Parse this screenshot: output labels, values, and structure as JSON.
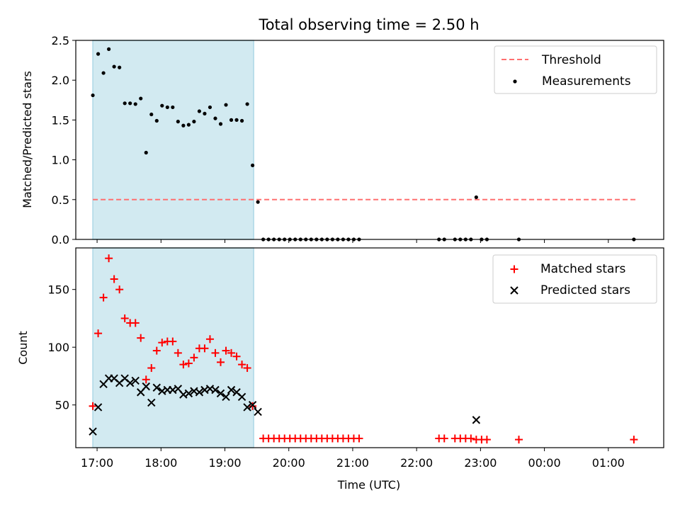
{
  "colors": {
    "shade": "#add8e6",
    "threshold": "#ff7070",
    "measurement": "#000000",
    "matched": "#ff0000",
    "predicted": "#000000"
  },
  "chart_data": [
    {
      "type": "scatter",
      "title": "Total observing time = 2.50 h",
      "ylabel": "Matched/Predicted stars",
      "xlabel": "",
      "ylim": [
        0,
        2.5
      ],
      "yticks": [
        0.0,
        0.5,
        1.0,
        1.5,
        2.0,
        2.5
      ],
      "ytick_labels": [
        "0.0",
        "0.5",
        "1.0",
        "1.5",
        "2.0",
        "2.5"
      ],
      "shaded_interval": [
        "16:56",
        "19:27"
      ],
      "threshold": {
        "name": "Threshold",
        "value": 0.5,
        "x_from": "16:56",
        "x_to": "01:28"
      },
      "legend_position": "top-right",
      "legend": [
        "Threshold",
        "Measurements"
      ],
      "series": [
        {
          "name": "Measurements",
          "marker": "dot",
          "points": [
            [
              "16:56",
              1.81
            ],
            [
              "17:01",
              2.33
            ],
            [
              "17:06",
              2.09
            ],
            [
              "17:11",
              2.39
            ],
            [
              "17:16",
              2.17
            ],
            [
              "17:21",
              2.16
            ],
            [
              "17:26",
              1.71
            ],
            [
              "17:31",
              1.71
            ],
            [
              "17:36",
              1.7
            ],
            [
              "17:41",
              1.77
            ],
            [
              "17:46",
              1.09
            ],
            [
              "17:51",
              1.57
            ],
            [
              "17:56",
              1.49
            ],
            [
              "18:01",
              1.68
            ],
            [
              "18:06",
              1.66
            ],
            [
              "18:11",
              1.66
            ],
            [
              "18:16",
              1.48
            ],
            [
              "18:21",
              1.43
            ],
            [
              "18:26",
              1.44
            ],
            [
              "18:31",
              1.48
            ],
            [
              "18:36",
              1.61
            ],
            [
              "18:41",
              1.58
            ],
            [
              "18:46",
              1.66
            ],
            [
              "18:51",
              1.52
            ],
            [
              "18:56",
              1.45
            ],
            [
              "19:01",
              1.69
            ],
            [
              "19:06",
              1.5
            ],
            [
              "19:11",
              1.5
            ],
            [
              "19:16",
              1.49
            ],
            [
              "19:21",
              1.7
            ],
            [
              "19:26",
              0.93
            ],
            [
              "19:31",
              0.47
            ],
            [
              "19:36",
              0
            ],
            [
              "19:41",
              0
            ],
            [
              "19:46",
              0
            ],
            [
              "19:51",
              0
            ],
            [
              "19:56",
              0
            ],
            [
              "20:01",
              0
            ],
            [
              "20:06",
              0
            ],
            [
              "20:11",
              0
            ],
            [
              "20:16",
              0
            ],
            [
              "20:21",
              0
            ],
            [
              "20:26",
              0
            ],
            [
              "20:31",
              0
            ],
            [
              "20:36",
              0
            ],
            [
              "20:41",
              0
            ],
            [
              "20:46",
              0
            ],
            [
              "20:51",
              0
            ],
            [
              "20:56",
              0
            ],
            [
              "21:01",
              0
            ],
            [
              "21:06",
              0
            ],
            [
              "22:21",
              0
            ],
            [
              "22:26",
              0
            ],
            [
              "22:36",
              0
            ],
            [
              "22:41",
              0
            ],
            [
              "22:46",
              0
            ],
            [
              "22:51",
              0
            ],
            [
              "22:56",
              0.53
            ],
            [
              "23:01",
              0
            ],
            [
              "23:06",
              0
            ],
            [
              "23:36",
              0
            ],
            [
              "01:24",
              0
            ]
          ]
        }
      ]
    },
    {
      "type": "scatter",
      "title": "",
      "ylabel": "Count",
      "xlabel": "Time (UTC)",
      "ylim": [
        13,
        186
      ],
      "yticks": [
        50,
        100,
        150
      ],
      "ytick_labels": [
        "50",
        "100",
        "150"
      ],
      "xlim": [
        "16:40",
        "01:52"
      ],
      "xticks": [
        "17:00",
        "18:00",
        "19:00",
        "20:00",
        "21:00",
        "22:00",
        "23:00",
        "00:00",
        "01:00"
      ],
      "shaded_interval": [
        "16:56",
        "19:27"
      ],
      "legend_position": "top-right",
      "legend": [
        "Matched stars",
        "Predicted stars"
      ],
      "series": [
        {
          "name": "Matched stars",
          "marker": "plus",
          "points": [
            [
              "16:56",
              49
            ],
            [
              "17:01",
              112
            ],
            [
              "17:06",
              143
            ],
            [
              "17:11",
              177
            ],
            [
              "17:16",
              159
            ],
            [
              "17:21",
              150
            ],
            [
              "17:26",
              125
            ],
            [
              "17:31",
              121
            ],
            [
              "17:36",
              121
            ],
            [
              "17:41",
              108
            ],
            [
              "17:46",
              72
            ],
            [
              "17:51",
              82
            ],
            [
              "17:56",
              97
            ],
            [
              "18:01",
              104
            ],
            [
              "18:06",
              105
            ],
            [
              "18:11",
              105
            ],
            [
              "18:16",
              95
            ],
            [
              "18:21",
              85
            ],
            [
              "18:26",
              86
            ],
            [
              "18:31",
              91
            ],
            [
              "18:36",
              99
            ],
            [
              "18:41",
              99
            ],
            [
              "18:46",
              107
            ],
            [
              "18:51",
              95
            ],
            [
              "18:56",
              87
            ],
            [
              "19:01",
              97
            ],
            [
              "19:06",
              95
            ],
            [
              "19:11",
              92
            ],
            [
              "19:16",
              85
            ],
            [
              "19:21",
              82
            ],
            [
              "19:26",
              49
            ],
            [
              "19:36",
              21
            ],
            [
              "19:41",
              21
            ],
            [
              "19:46",
              21
            ],
            [
              "19:51",
              21
            ],
            [
              "19:56",
              21
            ],
            [
              "20:01",
              21
            ],
            [
              "20:06",
              21
            ],
            [
              "20:11",
              21
            ],
            [
              "20:16",
              21
            ],
            [
              "20:21",
              21
            ],
            [
              "20:26",
              21
            ],
            [
              "20:31",
              21
            ],
            [
              "20:36",
              21
            ],
            [
              "20:41",
              21
            ],
            [
              "20:46",
              21
            ],
            [
              "20:51",
              21
            ],
            [
              "20:56",
              21
            ],
            [
              "21:01",
              21
            ],
            [
              "21:06",
              21
            ],
            [
              "22:21",
              21
            ],
            [
              "22:26",
              21
            ],
            [
              "22:36",
              21
            ],
            [
              "22:41",
              21
            ],
            [
              "22:46",
              21
            ],
            [
              "22:51",
              21
            ],
            [
              "22:56",
              20
            ],
            [
              "23:01",
              20
            ],
            [
              "23:06",
              20
            ],
            [
              "23:36",
              20
            ],
            [
              "01:24",
              20
            ]
          ]
        },
        {
          "name": "Predicted stars",
          "marker": "x",
          "points": [
            [
              "16:56",
              27
            ],
            [
              "17:01",
              48
            ],
            [
              "17:06",
              68
            ],
            [
              "17:11",
              73
            ],
            [
              "17:16",
              73
            ],
            [
              "17:21",
              69
            ],
            [
              "17:26",
              73
            ],
            [
              "17:31",
              69
            ],
            [
              "17:36",
              71
            ],
            [
              "17:41",
              61
            ],
            [
              "17:46",
              66
            ],
            [
              "17:51",
              52
            ],
            [
              "17:56",
              65
            ],
            [
              "18:01",
              62
            ],
            [
              "18:06",
              63
            ],
            [
              "18:11",
              63
            ],
            [
              "18:16",
              64
            ],
            [
              "18:21",
              59
            ],
            [
              "18:26",
              60
            ],
            [
              "18:31",
              62
            ],
            [
              "18:36",
              61
            ],
            [
              "18:41",
              63
            ],
            [
              "18:46",
              64
            ],
            [
              "18:51",
              63
            ],
            [
              "18:56",
              60
            ],
            [
              "19:01",
              57
            ],
            [
              "19:06",
              63
            ],
            [
              "19:11",
              61
            ],
            [
              "19:16",
              57
            ],
            [
              "19:21",
              48
            ],
            [
              "19:26",
              50
            ],
            [
              "19:31",
              44
            ],
            [
              "22:56",
              37
            ]
          ]
        }
      ]
    }
  ]
}
